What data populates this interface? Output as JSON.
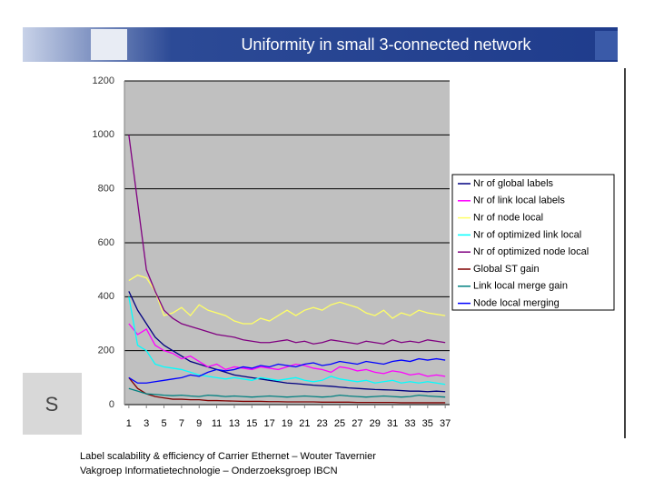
{
  "header": {
    "title": "Uniformity in small 3-connected network"
  },
  "sidebar": {
    "letter": "S"
  },
  "footer": {
    "lines": [
      "Label scalability & efficiency of Carrier Ethernet – Wouter Tavernier",
      "Vakgroep Informatietechnologie – Onderzoeksgroep IBCN"
    ]
  },
  "chart_data": {
    "type": "line",
    "x": [
      1,
      2,
      3,
      4,
      5,
      6,
      7,
      8,
      9,
      10,
      11,
      12,
      13,
      14,
      15,
      16,
      17,
      18,
      19,
      20,
      21,
      22,
      23,
      24,
      25,
      26,
      27,
      28,
      29,
      30,
      31,
      32,
      33,
      34,
      35,
      36,
      37
    ],
    "xlim": [
      0.5,
      37.5
    ],
    "xticks": [
      1,
      3,
      5,
      7,
      9,
      11,
      13,
      15,
      17,
      19,
      21,
      23,
      25,
      27,
      29,
      31,
      33,
      35,
      37
    ],
    "ylim": [
      0,
      1200
    ],
    "yticks": [
      0,
      200,
      400,
      600,
      800,
      1000,
      1200
    ],
    "grid": true,
    "legend": "right",
    "series": [
      {
        "name": "Nr of global labels",
        "color": "#000080",
        "values": [
          420,
          350,
          300,
          250,
          220,
          200,
          180,
          160,
          150,
          140,
          130,
          120,
          110,
          105,
          100,
          95,
          90,
          85,
          80,
          78,
          75,
          72,
          70,
          68,
          65,
          62,
          60,
          58,
          56,
          55,
          54,
          52,
          50,
          50,
          48,
          50,
          48
        ]
      },
      {
        "name": "Nr of link local labels",
        "color": "#ff00ff",
        "values": [
          300,
          260,
          280,
          220,
          200,
          190,
          170,
          180,
          160,
          140,
          150,
          130,
          140,
          135,
          130,
          140,
          135,
          130,
          140,
          150,
          145,
          135,
          130,
          120,
          140,
          135,
          125,
          130,
          120,
          115,
          125,
          120,
          110,
          115,
          105,
          110,
          105
        ]
      },
      {
        "name": "Nr of node local",
        "color": "#ffff66",
        "values": [
          460,
          480,
          470,
          420,
          330,
          340,
          360,
          330,
          370,
          350,
          340,
          330,
          310,
          300,
          300,
          320,
          310,
          330,
          350,
          330,
          350,
          360,
          350,
          370,
          380,
          370,
          360,
          340,
          330,
          350,
          320,
          340,
          330,
          350,
          340,
          335,
          330
        ]
      },
      {
        "name": "Nr of optimized link local",
        "color": "#00ffff",
        "values": [
          400,
          220,
          200,
          150,
          140,
          135,
          130,
          120,
          110,
          105,
          100,
          95,
          100,
          95,
          90,
          100,
          95,
          90,
          95,
          100,
          90,
          85,
          90,
          105,
          95,
          90,
          85,
          90,
          80,
          85,
          90,
          80,
          85,
          80,
          85,
          80,
          75
        ]
      },
      {
        "name": "Nr of optimized node local",
        "color": "#800080",
        "values": [
          1000,
          750,
          500,
          420,
          350,
          320,
          300,
          290,
          280,
          270,
          260,
          255,
          250,
          240,
          235,
          230,
          230,
          235,
          240,
          230,
          235,
          225,
          230,
          240,
          235,
          230,
          225,
          235,
          230,
          225,
          240,
          230,
          235,
          230,
          240,
          235,
          230
        ]
      },
      {
        "name": "Global ST gain",
        "color": "#800000",
        "values": [
          100,
          60,
          40,
          30,
          25,
          20,
          20,
          18,
          18,
          15,
          15,
          14,
          13,
          12,
          12,
          12,
          11,
          11,
          10,
          10,
          10,
          10,
          9,
          9,
          9,
          9,
          8,
          8,
          8,
          8,
          8,
          7,
          7,
          7,
          7,
          7,
          7
        ]
      },
      {
        "name": "Link local merge gain",
        "color": "#008080",
        "values": [
          60,
          50,
          40,
          38,
          35,
          33,
          35,
          32,
          30,
          35,
          33,
          30,
          32,
          30,
          28,
          30,
          32,
          30,
          28,
          30,
          32,
          30,
          28,
          30,
          35,
          32,
          30,
          28,
          30,
          32,
          30,
          28,
          30,
          35,
          32,
          30,
          28
        ]
      },
      {
        "name": "Node local merging",
        "color": "#0000ff",
        "values": [
          100,
          80,
          80,
          85,
          90,
          95,
          100,
          110,
          105,
          120,
          130,
          125,
          130,
          140,
          135,
          145,
          140,
          150,
          145,
          140,
          150,
          155,
          145,
          150,
          160,
          155,
          150,
          160,
          155,
          150,
          160,
          165,
          160,
          170,
          165,
          170,
          165
        ]
      }
    ]
  }
}
